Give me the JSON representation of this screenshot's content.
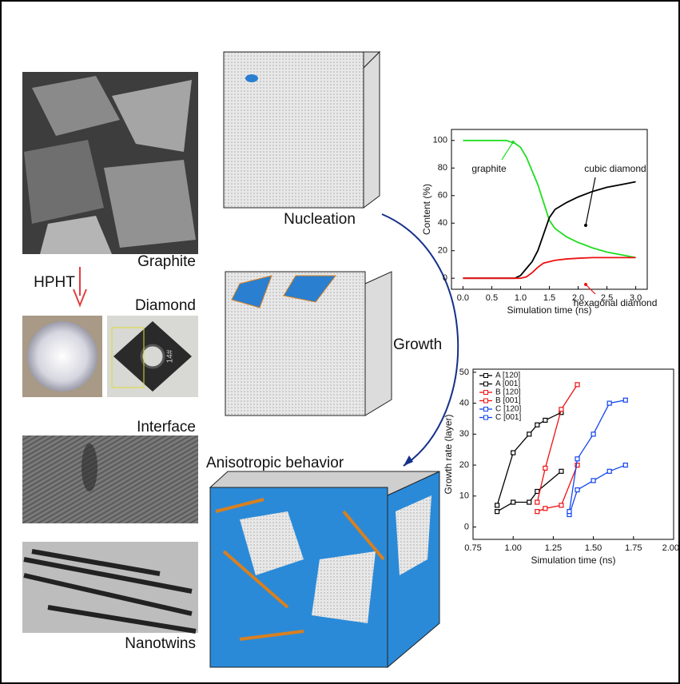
{
  "labels": {
    "graphite": "Graphite",
    "hpht": "HPHT",
    "diamond": "Diamond",
    "sample": "14#",
    "interface": "Interface",
    "nanotwins": "Nanotwins",
    "nucleation": "Nucleation",
    "growth": "Growth",
    "anisotropic": "Anisotropic behavior"
  },
  "chart_data": [
    {
      "type": "line",
      "x_label": "Simulation time (ns)",
      "y_label": "Content (%)",
      "x": [
        0,
        0.25,
        0.5,
        0.75,
        0.9,
        1.0,
        1.1,
        1.2,
        1.3,
        1.4,
        1.5,
        1.6,
        1.8,
        2.0,
        2.25,
        2.5,
        2.75,
        3.0
      ],
      "series": [
        {
          "name": "graphite",
          "color": "#22dd22",
          "values": [
            100,
            100,
            100,
            100,
            98,
            95,
            88,
            78,
            68,
            55,
            42,
            36,
            30,
            26,
            22,
            19,
            17,
            15
          ]
        },
        {
          "name": "cubic diamond",
          "color": "#000000",
          "values": [
            0,
            0,
            0,
            0,
            0,
            2,
            7,
            12,
            20,
            32,
            44,
            50,
            55,
            59,
            63,
            66,
            68,
            70
          ]
        },
        {
          "name": "hexagonal diamond",
          "color": "#ee1111",
          "values": [
            0,
            0,
            0,
            0,
            0,
            0,
            1,
            4,
            8,
            11,
            12,
            13,
            14,
            14.5,
            15,
            15,
            15,
            15
          ]
        }
      ],
      "xlim": [
        -0.2,
        3.2
      ],
      "ylim": [
        -8,
        108
      ],
      "xticks": [
        {
          "value": 0,
          "label": "0.0"
        },
        0.5,
        {
          "value": 1,
          "label": "1.0"
        },
        1.5,
        {
          "value": 2,
          "label": "2.0"
        },
        2.5,
        {
          "value": 3,
          "label": "3.0"
        }
      ],
      "yticks": [
        0,
        20,
        40,
        60,
        80,
        100
      ]
    },
    {
      "type": "line",
      "markers": true,
      "legend": "upper left",
      "x_label": "Simulation time (ns)",
      "y_label": "Growth rate (layer)",
      "series": [
        {
          "name": "A [120]",
          "color": "#000000",
          "x": [
            0.9,
            1.0,
            1.1,
            1.15,
            1.3
          ],
          "values": [
            5,
            8,
            8,
            11.5,
            18
          ]
        },
        {
          "name": "A [001]",
          "color": "#000000",
          "x": [
            0.9,
            1.0,
            1.1,
            1.15,
            1.2,
            1.3
          ],
          "values": [
            7,
            24,
            30,
            33,
            34.5,
            37
          ]
        },
        {
          "name": "B [120]",
          "color": "#ee1111",
          "x": [
            1.15,
            1.2,
            1.3,
            1.4
          ],
          "values": [
            5,
            6,
            7,
            20
          ]
        },
        {
          "name": "B [001]",
          "color": "#ee1111",
          "x": [
            1.15,
            1.2,
            1.3,
            1.4
          ],
          "values": [
            8,
            19,
            38,
            46
          ]
        },
        {
          "name": "C [120]",
          "color": "#1144ee",
          "x": [
            1.35,
            1.4,
            1.5,
            1.6,
            1.7
          ],
          "values": [
            4,
            12,
            15,
            18,
            20
          ]
        },
        {
          "name": "C [001]",
          "color": "#1144ee",
          "x": [
            1.35,
            1.4,
            1.5,
            1.6,
            1.7
          ],
          "values": [
            5,
            22,
            30,
            40,
            41
          ]
        }
      ],
      "xlim": [
        0.75,
        2.0
      ],
      "ylim": [
        -4,
        51
      ],
      "xticks": [
        0.75,
        {
          "value": 1,
          "label": "1.00"
        },
        1.25,
        {
          "value": 1.5,
          "label": "1.50"
        },
        1.75,
        {
          "value": 2,
          "label": "2.00"
        }
      ],
      "yticks": [
        0,
        10,
        20,
        30,
        40,
        50
      ]
    }
  ]
}
